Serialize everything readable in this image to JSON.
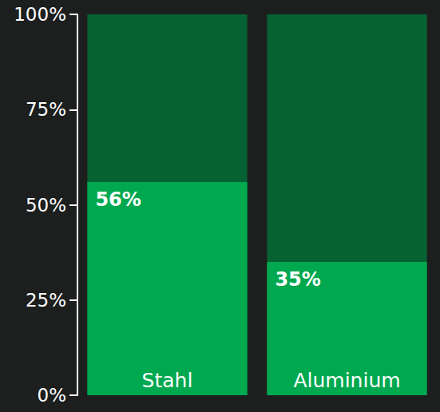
{
  "chart_data": {
    "type": "bar",
    "categories": [
      "Stahl",
      "Aluminium"
    ],
    "values": [
      56,
      35
    ],
    "value_labels": [
      "56%",
      "35%"
    ],
    "data_labels": true,
    "color": "#00a84f",
    "ylim": [
      0,
      100
    ],
    "yticks": [
      {
        "value": 0,
        "label": "0%"
      },
      {
        "value": 25,
        "label": "25%"
      },
      {
        "value": 50,
        "label": "50%"
      },
      {
        "value": 75,
        "label": "75%"
      },
      {
        "value": 100,
        "label": "100%"
      }
    ],
    "grid": false
  }
}
